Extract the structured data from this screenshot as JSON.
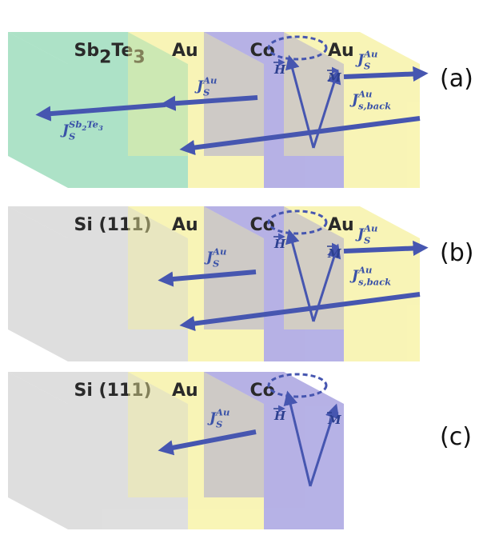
{
  "panels": [
    {
      "label": "(a)",
      "blocks": [
        {
          "name": [
            {
              "text": "Sb"
            },
            {
              "text": "2",
              "pos": "sub"
            },
            {
              "text": "Te"
            },
            {
              "text": "3",
              "pos": "sub"
            }
          ],
          "color": "#8ed8b2"
        },
        {
          "name": [
            {
              "text": "Au"
            }
          ],
          "color": "#f6f19a"
        },
        {
          "name": [
            {
              "text": "Co"
            }
          ],
          "color": "#9a94dc"
        },
        {
          "name": [
            {
              "text": "Au"
            }
          ],
          "color": "#f6f19a"
        }
      ],
      "vectors": {
        "h": [
          {
            "text": "H"
          }
        ],
        "m": [
          {
            "text": "M"
          }
        ]
      },
      "currents": [
        [
          {
            "text": "J"
          },
          {
            "text": "Au",
            "pos": "sup"
          },
          {
            "text": "S",
            "pos": "sub"
          }
        ],
        [
          {
            "text": "J"
          },
          {
            "text": "Au",
            "pos": "sup"
          },
          {
            "text": "S",
            "pos": "sub"
          }
        ],
        [
          {
            "text": "J"
          },
          {
            "text": "Au",
            "pos": "sup"
          },
          {
            "text": "s,back",
            "pos": "sub"
          }
        ],
        [
          {
            "text": "J"
          },
          {
            "text": "Sb",
            "pos": "sup"
          },
          {
            "text": "2",
            "pos": "supsub"
          },
          {
            "text": "Te",
            "pos": "sup"
          },
          {
            "text": "3",
            "pos": "supsub"
          },
          {
            "text": "S",
            "pos": "sub"
          }
        ]
      ]
    },
    {
      "label": "(b)",
      "blocks": [
        {
          "name": [
            {
              "text": "Si (111)"
            }
          ],
          "color": "#d2d2d2"
        },
        {
          "name": [
            {
              "text": "Au"
            }
          ],
          "color": "#f6f19a"
        },
        {
          "name": [
            {
              "text": "Co"
            }
          ],
          "color": "#9a94dc"
        },
        {
          "name": [
            {
              "text": "Au"
            }
          ],
          "color": "#f6f19a"
        }
      ],
      "vectors": {
        "h": [
          {
            "text": "H"
          }
        ],
        "m": [
          {
            "text": "M"
          }
        ]
      },
      "currents": [
        [
          {
            "text": "J"
          },
          {
            "text": "Au",
            "pos": "sup"
          },
          {
            "text": "S",
            "pos": "sub"
          }
        ],
        [
          {
            "text": "J"
          },
          {
            "text": "Au",
            "pos": "sup"
          },
          {
            "text": "S",
            "pos": "sub"
          }
        ],
        [
          {
            "text": "J"
          },
          {
            "text": "Au",
            "pos": "sup"
          },
          {
            "text": "s,back",
            "pos": "sub"
          }
        ]
      ]
    },
    {
      "label": "(c)",
      "blocks": [
        {
          "name": [
            {
              "text": "Si (111)"
            }
          ],
          "color": "#d2d2d2"
        },
        {
          "name": [
            {
              "text": "Au"
            }
          ],
          "color": "#f6f19a"
        },
        {
          "name": [
            {
              "text": "Co"
            }
          ],
          "color": "#9a94dc"
        }
      ],
      "vectors": {
        "h": [
          {
            "text": "H"
          }
        ],
        "m": [
          {
            "text": "M"
          }
        ]
      },
      "currents": [
        [
          {
            "text": "J"
          },
          {
            "text": "Au",
            "pos": "sup"
          },
          {
            "text": "S",
            "pos": "sub"
          }
        ]
      ]
    }
  ]
}
